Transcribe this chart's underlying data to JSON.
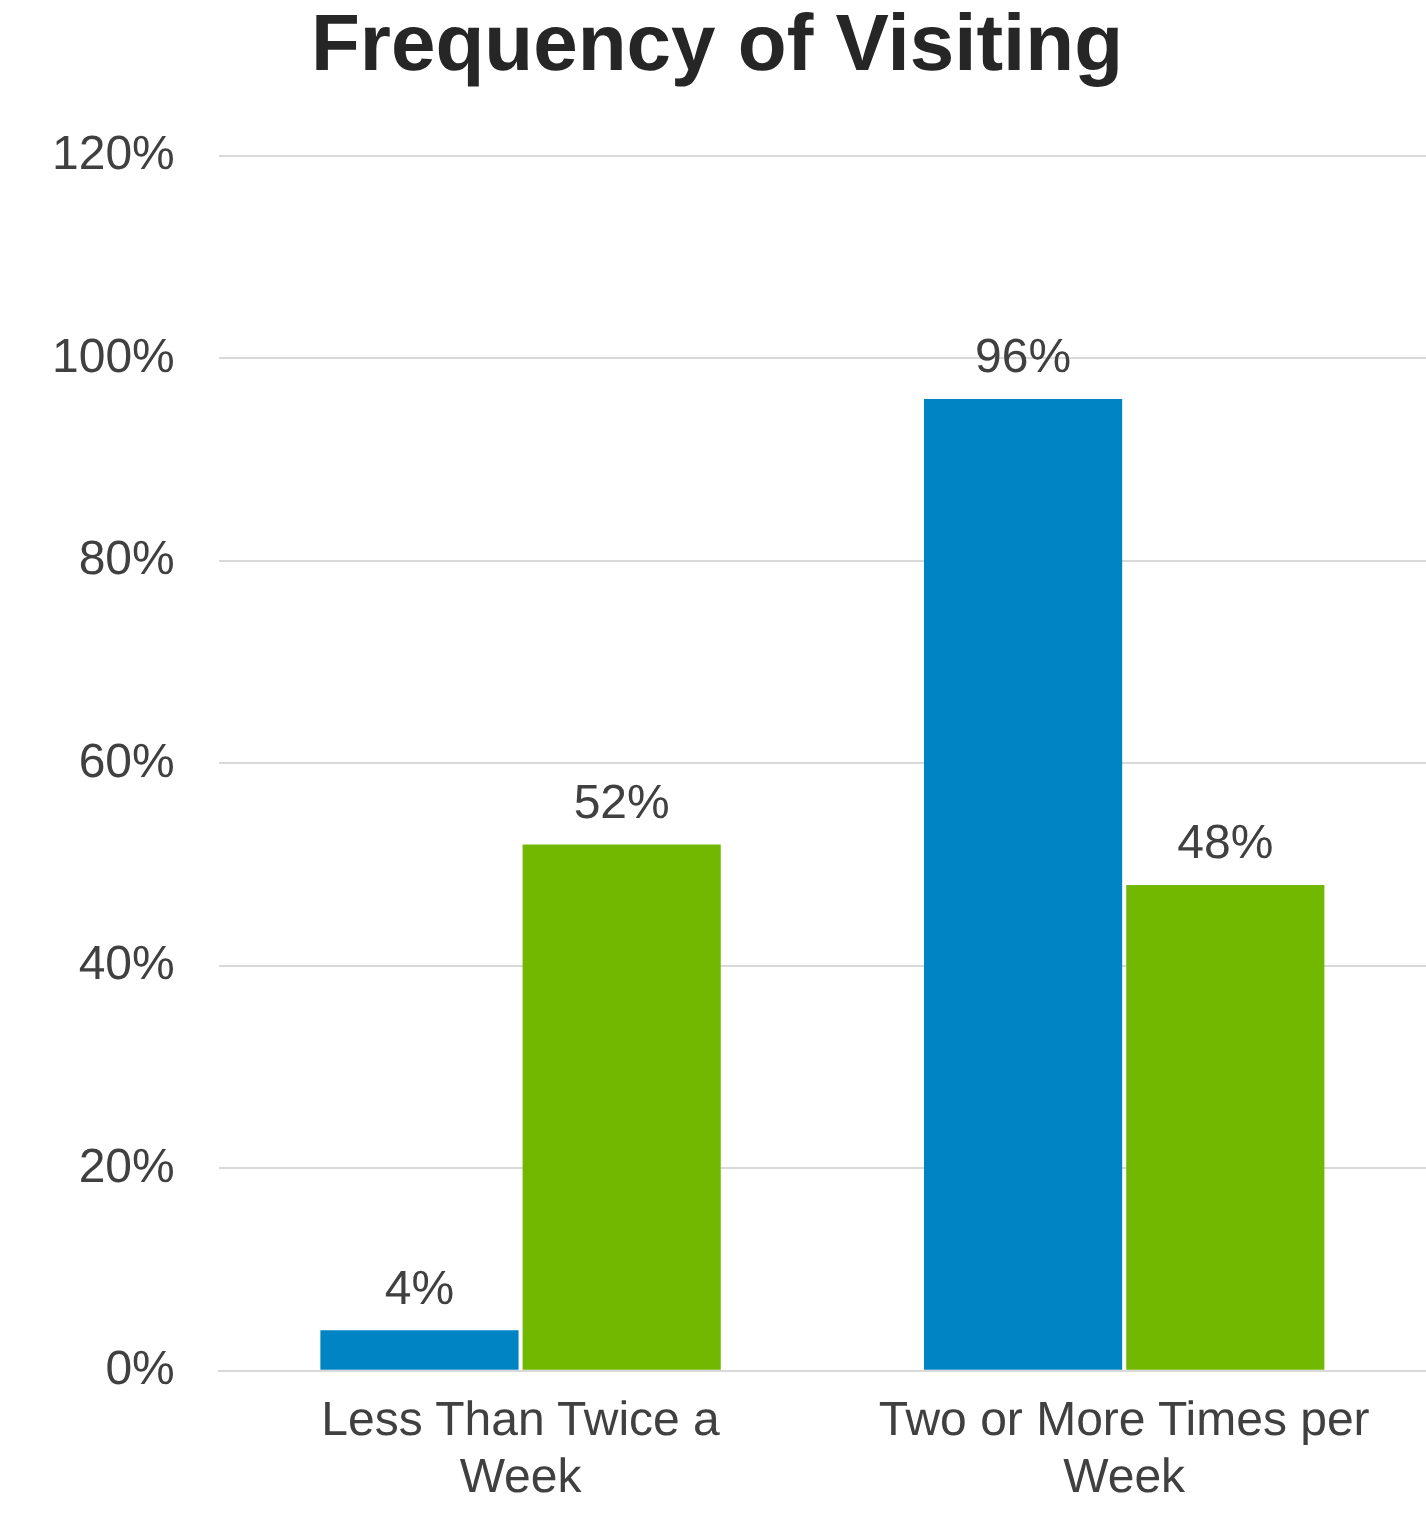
{
  "chart_data": {
    "type": "bar",
    "title": "Frequency of Visiting",
    "categories": [
      "Less Than Twice a Week",
      "Two or More Times per Week"
    ],
    "series": [
      {
        "color": "#0084c4",
        "values": [
          4,
          96
        ],
        "value_labels": [
          "4%",
          "96%"
        ]
      },
      {
        "color": "#72b800",
        "values": [
          52,
          48
        ],
        "value_labels": [
          "52%",
          "48%"
        ]
      }
    ],
    "ylim": [
      0,
      120
    ],
    "yticks": [
      {
        "value": 0,
        "label": "0%"
      },
      {
        "value": 20,
        "label": "20%"
      },
      {
        "value": 40,
        "label": "40%"
      },
      {
        "value": 60,
        "label": "60%"
      },
      {
        "value": 80,
        "label": "80%"
      },
      {
        "value": 100,
        "label": "100%"
      },
      {
        "value": 120,
        "label": "120%"
      }
    ],
    "grid": "y",
    "legend": false
  }
}
